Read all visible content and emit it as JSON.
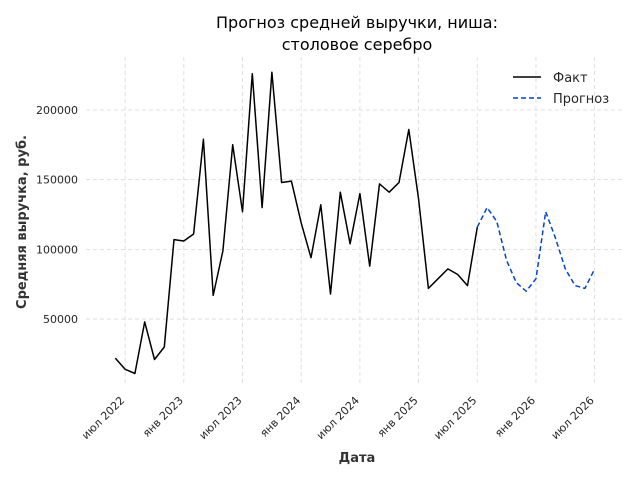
{
  "chart_data": {
    "type": "line",
    "title_lines": [
      "Прогноз средней выручки, ниша:",
      "столовое серебро"
    ],
    "xlabel": "Дата",
    "ylabel": "Средняя выручка, руб.",
    "x_ticks": [
      {
        "date": "2022-07",
        "label": "июл 2022"
      },
      {
        "date": "2023-01",
        "label": "янв 2023"
      },
      {
        "date": "2023-07",
        "label": "июл 2023"
      },
      {
        "date": "2024-01",
        "label": "янв 2024"
      },
      {
        "date": "2024-07",
        "label": "июл 2024"
      },
      {
        "date": "2025-01",
        "label": "янв 2025"
      },
      {
        "date": "2025-07",
        "label": "июл 2025"
      },
      {
        "date": "2026-01",
        "label": "янв 2026"
      },
      {
        "date": "2026-07",
        "label": "июл 2026"
      }
    ],
    "y_ticks": [
      50000,
      100000,
      150000,
      200000
    ],
    "xlim": [
      "2022-03",
      "2026-10"
    ],
    "ylim": [
      2000,
      238000
    ],
    "grid": true,
    "legend_position": "top-right",
    "series": [
      {
        "name": "Факт",
        "color": "#000000",
        "dash": "solid",
        "points": [
          [
            "2022-06",
            22000
          ],
          [
            "2022-07",
            14000
          ],
          [
            "2022-08",
            11000
          ],
          [
            "2022-09",
            48000
          ],
          [
            "2022-10",
            21000
          ],
          [
            "2022-11",
            30000
          ],
          [
            "2022-12",
            107000
          ],
          [
            "2023-01",
            106000
          ],
          [
            "2023-02",
            111000
          ],
          [
            "2023-03",
            179000
          ],
          [
            "2023-04",
            67000
          ],
          [
            "2023-05",
            99000
          ],
          [
            "2023-06",
            175000
          ],
          [
            "2023-07",
            127000
          ],
          [
            "2023-08",
            226000
          ],
          [
            "2023-09",
            130000
          ],
          [
            "2023-10",
            227000
          ],
          [
            "2023-11",
            148000
          ],
          [
            "2023-12",
            149000
          ],
          [
            "2024-01",
            119000
          ],
          [
            "2024-02",
            94000
          ],
          [
            "2024-03",
            132000
          ],
          [
            "2024-04",
            68000
          ],
          [
            "2024-05",
            141000
          ],
          [
            "2024-06",
            104000
          ],
          [
            "2024-07",
            140000
          ],
          [
            "2024-08",
            88000
          ],
          [
            "2024-09",
            147000
          ],
          [
            "2024-10",
            141000
          ],
          [
            "2024-11",
            148000
          ],
          [
            "2024-12",
            186000
          ],
          [
            "2025-01",
            136000
          ],
          [
            "2025-02",
            72000
          ],
          [
            "2025-03",
            79000
          ],
          [
            "2025-04",
            86000
          ],
          [
            "2025-05",
            82000
          ],
          [
            "2025-06",
            74000
          ],
          [
            "2025-07",
            116000
          ]
        ]
      },
      {
        "name": "Прогноз",
        "color": "#0044cc",
        "dash": "dashed",
        "points": [
          [
            "2025-07",
            116000
          ],
          [
            "2025-08",
            130000
          ],
          [
            "2025-09",
            120000
          ],
          [
            "2025-10",
            92000
          ],
          [
            "2025-11",
            76000
          ],
          [
            "2025-12",
            70000
          ],
          [
            "2026-01",
            79000
          ],
          [
            "2026-02",
            127000
          ],
          [
            "2026-03",
            108000
          ],
          [
            "2026-04",
            86000
          ],
          [
            "2026-05",
            74000
          ],
          [
            "2026-06",
            72000
          ],
          [
            "2026-07",
            86000
          ]
        ]
      }
    ]
  }
}
